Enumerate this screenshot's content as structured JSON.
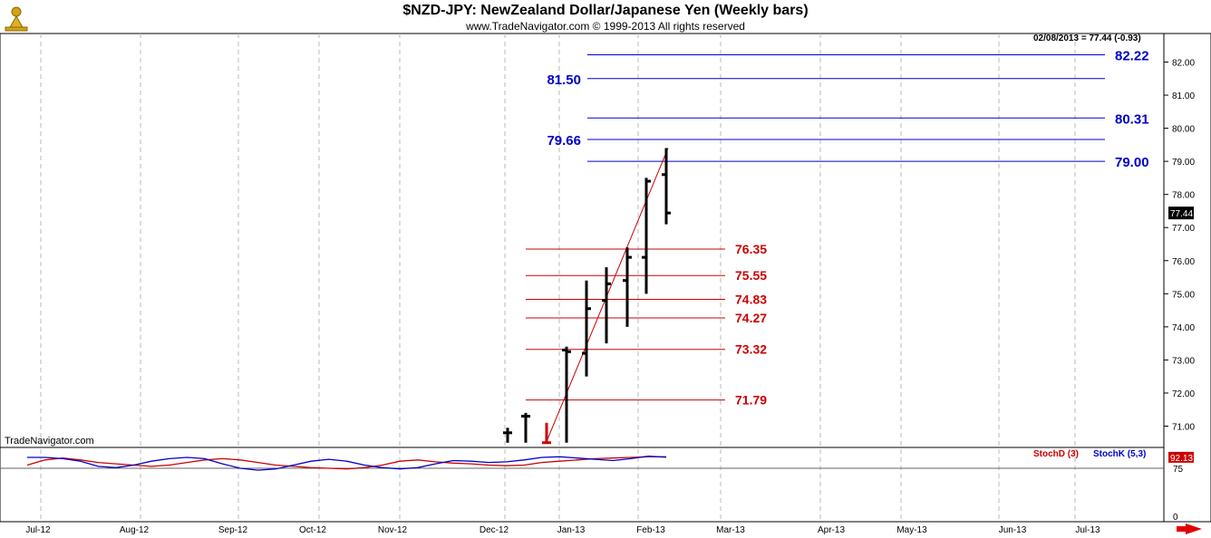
{
  "header": {
    "title": "$NZD-JPY:  NewZealand Dollar/Japanese Yen  (Weekly bars)",
    "copyright": "www.TradeNavigator.com © 1999-2013 All rights reserved"
  },
  "branding": {
    "watermark": "TradeNavigator.com"
  },
  "last_quote": "02/08/2013 = 77.44 (-0.93)",
  "price_axis": {
    "ticks": [
      "82.00",
      "81.00",
      "80.00",
      "79.00",
      "78.00",
      "77.00",
      "76.00",
      "75.00",
      "74.00",
      "73.00",
      "72.00",
      "71.00"
    ],
    "current_price_label": "77.44"
  },
  "stochastic": {
    "legend_d": "StochD (3)",
    "legend_k": "StochK (5,3)",
    "tick_75": "75",
    "tick_0": "0",
    "current_value_label": "92.13",
    "colors": {
      "d": "#cc0000",
      "k": "#0000cc"
    }
  },
  "chart_data": [
    {
      "type": "bar",
      "subtype": "ohlc",
      "title": "$NZD-JPY:  NewZealand Dollar/Japanese Yen  (Weekly bars)",
      "x_labels": [
        "Jul-12",
        "Aug-12",
        "Sep-12",
        "Oct-12",
        "Nov-12",
        "Dec-12",
        "Jan-13",
        "Feb-13",
        "Mar-13",
        "Apr-13",
        "May-13",
        "Jun-13",
        "Jul-13"
      ],
      "ylim": [
        70.5,
        82.6
      ],
      "grid": "vertical dashed at month boundaries",
      "bars": [
        {
          "week": "Dec-12 wk4",
          "open": 70.8,
          "high": 70.95,
          "low": 70.5,
          "close": 70.8,
          "color": "#000000"
        },
        {
          "week": "Dec-12 wk5",
          "open": 71.3,
          "high": 71.4,
          "low": 70.5,
          "close": 71.3,
          "color": "#000000"
        },
        {
          "week": "Jan-13 wk0",
          "open": 70.5,
          "high": 71.1,
          "low": 70.5,
          "close": 70.5,
          "color": "#cc0000"
        },
        {
          "week": "Jan-13 wk1",
          "open": 73.3,
          "high": 73.4,
          "low": 70.5,
          "close": 73.25,
          "color": "#000000"
        },
        {
          "week": "Jan-13 wk2",
          "open": 73.2,
          "high": 75.4,
          "low": 72.5,
          "close": 74.55,
          "color": "#000000"
        },
        {
          "week": "Jan-13 wk3",
          "open": 74.8,
          "high": 75.8,
          "low": 73.5,
          "close": 75.3,
          "color": "#000000"
        },
        {
          "week": "Jan-13 wk4",
          "open": 75.4,
          "high": 76.4,
          "low": 74.0,
          "close": 76.1,
          "color": "#000000"
        },
        {
          "week": "Feb-13 wk1",
          "open": 76.1,
          "high": 78.5,
          "low": 75.0,
          "close": 78.4,
          "color": "#000000"
        },
        {
          "week": "Feb-13 wk2",
          "open": 78.6,
          "high": 79.4,
          "low": 77.1,
          "close": 77.44,
          "color": "#000000"
        }
      ],
      "trendline": {
        "from_price": 70.6,
        "to_price": 79.4,
        "color": "#cc0000"
      },
      "extension_levels": [
        {
          "label": "82.22",
          "value": 82.22,
          "color": "#0000cc"
        },
        {
          "label": "81.50",
          "value": 81.5,
          "color": "#0000cc"
        },
        {
          "label": "80.31",
          "value": 80.31,
          "color": "#0000cc"
        },
        {
          "label": "79.66",
          "value": 79.66,
          "color": "#0000cc"
        },
        {
          "label": "79.00",
          "value": 79.0,
          "color": "#0000cc"
        }
      ],
      "retracement_levels": [
        {
          "label": "76.35",
          "value": 76.35,
          "color": "#cc0000"
        },
        {
          "label": "75.55",
          "value": 75.55,
          "color": "#cc0000"
        },
        {
          "label": "74.83",
          "value": 74.83,
          "color": "#cc0000"
        },
        {
          "label": "74.27",
          "value": 74.27,
          "color": "#cc0000"
        },
        {
          "label": "73.32",
          "value": 73.32,
          "color": "#cc0000"
        },
        {
          "label": "71.79",
          "value": 71.79,
          "color": "#cc0000"
        }
      ]
    },
    {
      "type": "line",
      "title": "",
      "ylim": [
        0,
        100
      ],
      "series": [
        {
          "name": "StochD (3)",
          "color": "#cc0000",
          "values": [
            80,
            88,
            91,
            88,
            84,
            82,
            80,
            78,
            80,
            84,
            88,
            90,
            88,
            84,
            80,
            78,
            76,
            75,
            74,
            76,
            80,
            86,
            88,
            85,
            83,
            82,
            80,
            79,
            80,
            84,
            86,
            88,
            90,
            91,
            92,
            93,
            93
          ]
        },
        {
          "name": "StochK (5,3)",
          "color": "#0000cc",
          "values": [
            92,
            92,
            90,
            86,
            78,
            76,
            80,
            86,
            90,
            92,
            90,
            82,
            75,
            72,
            74,
            80,
            86,
            89,
            86,
            80,
            76,
            74,
            76,
            82,
            87,
            86,
            84,
            85,
            88,
            92,
            93,
            91,
            89,
            87,
            90,
            94,
            92.13
          ]
        }
      ]
    }
  ]
}
